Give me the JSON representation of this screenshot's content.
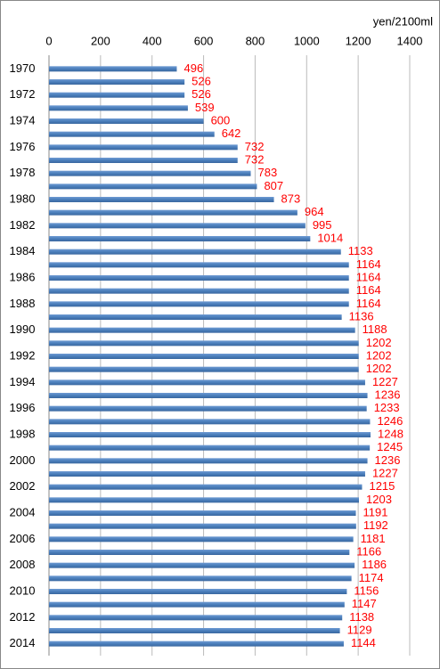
{
  "chart_data": {
    "type": "barh",
    "unit_label": "yen/2100ml",
    "categories": [
      "1970",
      null,
      "1972",
      null,
      "1974",
      null,
      "1976",
      null,
      "1978",
      null,
      "1980",
      null,
      "1982",
      null,
      "1984",
      null,
      "1986",
      null,
      "1988",
      null,
      "1990",
      null,
      "1992",
      null,
      "1994",
      null,
      "1996",
      null,
      "1998",
      null,
      "2000",
      null,
      "2002",
      null,
      "2004",
      null,
      "2006",
      null,
      "2008",
      null,
      "2010",
      null,
      "2012",
      null,
      "2014"
    ],
    "values": [
      496,
      526,
      526,
      539,
      600,
      642,
      732,
      732,
      783,
      807,
      873,
      964,
      995,
      1014,
      1133,
      1164,
      1164,
      1164,
      1164,
      1136,
      1188,
      1202,
      1202,
      1202,
      1227,
      1236,
      1233,
      1246,
      1248,
      1245,
      1236,
      1227,
      1215,
      1203,
      1191,
      1192,
      1181,
      1166,
      1186,
      1174,
      1156,
      1147,
      1138,
      1129,
      1144
    ],
    "color": "#4a7ebb",
    "label_color": "#ff0000",
    "xlim": [
      0,
      1400
    ],
    "xticks": [
      0,
      200,
      400,
      600,
      800,
      1000,
      1200,
      1400
    ],
    "grid": true
  }
}
